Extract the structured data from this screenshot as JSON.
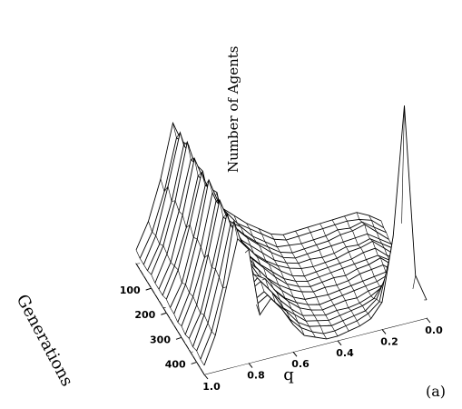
{
  "chart_data": {
    "type": "surface",
    "title": "",
    "xlabel": "q",
    "ylabel": "Generations",
    "zlabel": "Number of Agents",
    "panel_label": "(a)",
    "x_ticks": [
      "0.0",
      "0.2",
      "0.4",
      "0.6",
      "0.8",
      "1.0"
    ],
    "y_ticks": [
      "100",
      "200",
      "300",
      "400"
    ],
    "xlim": [
      0,
      1
    ],
    "ylim": [
      0,
      450
    ],
    "grid": true,
    "q": [
      0.0,
      0.05,
      0.1,
      0.15,
      0.2,
      0.25,
      0.3,
      0.35,
      0.4,
      0.45,
      0.5,
      0.55,
      0.6,
      0.65,
      0.7,
      0.75,
      0.8,
      0.85,
      0.9,
      0.95,
      1.0
    ],
    "generations": [
      0,
      25,
      50,
      75,
      100,
      125,
      150,
      175,
      200,
      225,
      250,
      275,
      300,
      325,
      350,
      375,
      400,
      425,
      450
    ],
    "agents": [
      [
        6,
        9,
        11,
        10,
        9,
        8,
        7,
        6,
        5,
        6,
        9,
        12,
        16,
        20,
        26,
        23,
        48,
        60,
        36,
        18,
        6
      ],
      [
        5,
        9,
        10,
        10,
        9,
        8,
        7,
        6,
        5,
        6,
        9,
        12,
        15,
        21,
        27,
        21,
        52,
        56,
        33,
        16,
        5
      ],
      [
        5,
        8,
        11,
        9,
        9,
        7,
        6,
        5,
        5,
        5,
        8,
        11,
        16,
        19,
        25,
        22,
        44,
        61,
        38,
        17,
        5
      ],
      [
        4,
        8,
        12,
        10,
        9,
        7,
        6,
        5,
        4,
        5,
        8,
        11,
        15,
        20,
        26,
        24,
        50,
        58,
        34,
        16,
        5
      ],
      [
        4,
        7,
        10,
        9,
        8,
        7,
        6,
        5,
        4,
        5,
        8,
        12,
        16,
        21,
        24,
        20,
        46,
        62,
        37,
        18,
        6
      ],
      [
        4,
        7,
        10,
        8,
        8,
        6,
        5,
        5,
        4,
        5,
        7,
        11,
        15,
        19,
        26,
        22,
        51,
        57,
        35,
        17,
        5
      ],
      [
        3,
        7,
        11,
        9,
        8,
        6,
        5,
        4,
        4,
        5,
        7,
        10,
        14,
        20,
        27,
        23,
        47,
        60,
        36,
        16,
        5
      ],
      [
        3,
        6,
        10,
        9,
        7,
        6,
        5,
        4,
        3,
        4,
        7,
        11,
        15,
        21,
        25,
        21,
        49,
        55,
        33,
        17,
        5
      ],
      [
        3,
        6,
        9,
        8,
        7,
        6,
        5,
        4,
        3,
        4,
        6,
        10,
        14,
        19,
        26,
        24,
        45,
        59,
        37,
        18,
        6
      ],
      [
        2,
        6,
        10,
        8,
        7,
        5,
        5,
        4,
        3,
        4,
        6,
        10,
        15,
        20,
        24,
        20,
        52,
        56,
        34,
        15,
        5
      ],
      [
        2,
        5,
        9,
        8,
        7,
        5,
        4,
        4,
        3,
        4,
        6,
        9,
        13,
        19,
        27,
        22,
        48,
        61,
        36,
        17,
        5
      ],
      [
        2,
        5,
        8,
        7,
        6,
        5,
        4,
        3,
        3,
        3,
        5,
        9,
        14,
        20,
        25,
        23,
        46,
        58,
        35,
        16,
        4
      ],
      [
        2,
        5,
        9,
        7,
        6,
        5,
        4,
        3,
        2,
        3,
        5,
        8,
        13,
        18,
        26,
        21,
        50,
        57,
        33,
        17,
        5
      ],
      [
        2,
        5,
        8,
        7,
        6,
        4,
        4,
        3,
        2,
        3,
        5,
        9,
        14,
        21,
        24,
        22,
        47,
        60,
        37,
        16,
        4
      ],
      [
        2,
        4,
        12,
        9,
        6,
        4,
        3,
        3,
        2,
        3,
        4,
        8,
        13,
        19,
        25,
        20,
        51,
        55,
        34,
        15,
        5
      ],
      [
        3,
        6,
        18,
        14,
        7,
        5,
        4,
        3,
        2,
        3,
        4,
        8,
        12,
        20,
        26,
        23,
        45,
        59,
        36,
        17,
        4
      ],
      [
        4,
        8,
        26,
        20,
        9,
        5,
        4,
        3,
        2,
        3,
        4,
        7,
        13,
        18,
        24,
        21,
        49,
        57,
        35,
        16,
        5
      ],
      [
        6,
        12,
        42,
        30,
        10,
        6,
        4,
        3,
        2,
        2,
        4,
        7,
        12,
        19,
        25,
        22,
        46,
        61,
        33,
        15,
        4
      ],
      [
        8,
        20,
        96,
        40,
        12,
        6,
        4,
        3,
        2,
        2,
        4,
        6,
        12,
        20,
        26,
        20,
        50,
        56,
        36,
        16,
        4
      ]
    ]
  }
}
